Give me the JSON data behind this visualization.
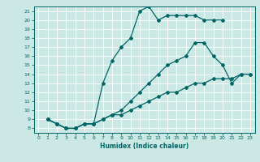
{
  "xlabel": "Humidex (Indice chaleur)",
  "bg_color": "#cce8e4",
  "line_color": "#006666",
  "grid_color": "#ffffff",
  "xlim": [
    -0.5,
    23.5
  ],
  "ylim": [
    7.5,
    21.5
  ],
  "yticks": [
    8,
    9,
    10,
    11,
    12,
    13,
    14,
    15,
    16,
    17,
    18,
    19,
    20,
    21
  ],
  "xticks": [
    0,
    1,
    2,
    3,
    4,
    5,
    6,
    7,
    8,
    9,
    10,
    11,
    12,
    13,
    14,
    15,
    16,
    17,
    18,
    19,
    20,
    21,
    22,
    23
  ],
  "line1_x": [
    1,
    2,
    3,
    4,
    5,
    6,
    7,
    8,
    9,
    10,
    11,
    12,
    13,
    14,
    15,
    16,
    17,
    18,
    19,
    20
  ],
  "line1_y": [
    9,
    8.5,
    8,
    8,
    8.5,
    8.5,
    13,
    15.5,
    17,
    18,
    21,
    21.5,
    20,
    20.5,
    20.5,
    20.5,
    20.5,
    20,
    20,
    20
  ],
  "line2_x": [
    1,
    2,
    3,
    4,
    5,
    6,
    7,
    8,
    9,
    10,
    11,
    12,
    13,
    14,
    15,
    16,
    17,
    18,
    19,
    20,
    21,
    22,
    23
  ],
  "line2_y": [
    9,
    8.5,
    8.0,
    8,
    8.5,
    8.5,
    9.0,
    9.5,
    10.0,
    11.0,
    12.0,
    13.0,
    14.0,
    15.0,
    15.5,
    16.0,
    17.5,
    17.5,
    16.0,
    15.0,
    13.0,
    14.0,
    14.0
  ],
  "line3_x": [
    1,
    2,
    3,
    4,
    5,
    6,
    7,
    8,
    9,
    10,
    11,
    12,
    13,
    14,
    15,
    16,
    17,
    18,
    19,
    20,
    21,
    22,
    23
  ],
  "line3_y": [
    9.0,
    8.5,
    8.0,
    8.0,
    8.5,
    8.5,
    9.0,
    9.5,
    9.5,
    10.0,
    10.5,
    11.0,
    11.5,
    12.0,
    12.0,
    12.5,
    13.0,
    13.0,
    13.5,
    13.5,
    13.5,
    14.0,
    14.0
  ]
}
